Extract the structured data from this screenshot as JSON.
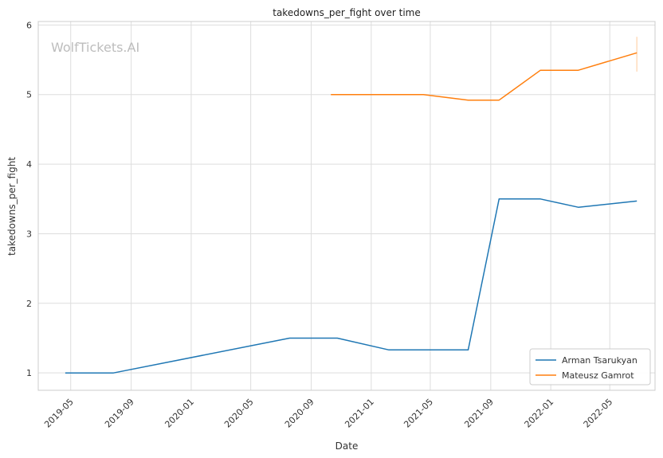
{
  "watermark": "WolfTickets.AI",
  "chart_data": {
    "type": "line",
    "title": "takedowns_per_fight over time",
    "xlabel": "Date",
    "ylabel": "takedowns_per_fight",
    "x_ticks": [
      "2019-05",
      "2019-09",
      "2020-01",
      "2020-05",
      "2020-09",
      "2021-01",
      "2021-05",
      "2021-09",
      "2022-01",
      "2022-05"
    ],
    "y_ticks": [
      1,
      2,
      3,
      4,
      5,
      6
    ],
    "xlim": [
      "2019-02-24",
      "2022-08-01"
    ],
    "ylim": [
      0.75,
      6.05
    ],
    "grid": true,
    "legend_position": "bottom-right",
    "series": [
      {
        "name": "Arman Tsarukyan",
        "color": "#1f77b4",
        "points": [
          {
            "x": "2019-04-20",
            "y": 1.0
          },
          {
            "x": "2019-07-27",
            "y": 1.0
          },
          {
            "x": "2020-07-19",
            "y": 1.5
          },
          {
            "x": "2020-10-24",
            "y": 1.5
          },
          {
            "x": "2021-02-06",
            "y": 1.33
          },
          {
            "x": "2021-04-17",
            "y": 1.33
          },
          {
            "x": "2021-07-17",
            "y": 1.33
          },
          {
            "x": "2021-09-18",
            "y": 3.5
          },
          {
            "x": "2021-12-11",
            "y": 3.5
          },
          {
            "x": "2022-02-26",
            "y": 3.38
          },
          {
            "x": "2022-06-25",
            "y": 3.47
          }
        ]
      },
      {
        "name": "Mateusz Gamrot",
        "color": "#ff7f0e",
        "points": [
          {
            "x": "2020-10-11",
            "y": 5.0
          },
          {
            "x": "2021-02-06",
            "y": 5.0
          },
          {
            "x": "2021-04-17",
            "y": 5.0
          },
          {
            "x": "2021-07-17",
            "y": 4.92
          },
          {
            "x": "2021-09-18",
            "y": 4.92
          },
          {
            "x": "2021-12-11",
            "y": 5.35
          },
          {
            "x": "2022-02-26",
            "y": 5.35
          },
          {
            "x": "2022-06-25",
            "y": 5.6
          }
        ],
        "error_bar": {
          "x": "2022-06-25",
          "low": 5.33,
          "high": 5.83
        }
      }
    ]
  }
}
